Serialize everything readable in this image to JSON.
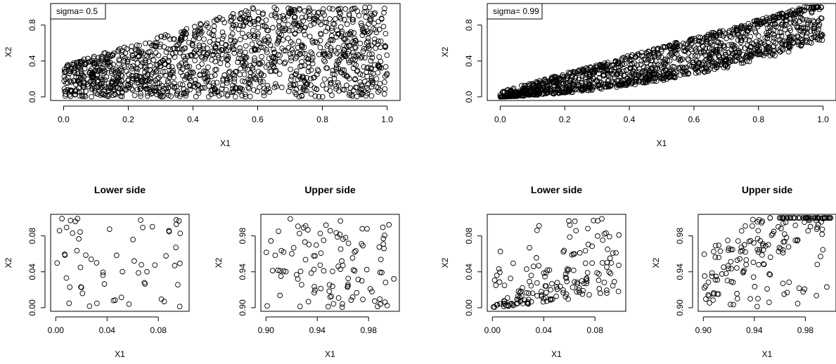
{
  "chart_data": [
    {
      "type": "scatter",
      "legend_text": "sigma= 0.5",
      "legend_position": "top-left",
      "xlabel": "X1",
      "ylabel": "X2",
      "xlim": [
        0,
        1
      ],
      "ylim": [
        0,
        1
      ],
      "xticks": [
        "0.0",
        "0.2",
        "0.4",
        "0.6",
        "0.8",
        "1.0"
      ],
      "yticks": [
        "0.0",
        "0.4",
        "0.8"
      ],
      "n_points": 1400,
      "dependence": 0.5,
      "seed": 11
    },
    {
      "type": "scatter",
      "legend_text": "sigma= 0.99",
      "legend_position": "top-left",
      "xlabel": "X1",
      "ylabel": "X2",
      "xlim": [
        0,
        1
      ],
      "ylim": [
        0,
        1
      ],
      "xticks": [
        "0.0",
        "0.2",
        "0.4",
        "0.6",
        "0.8",
        "1.0"
      ],
      "yticks": [
        "0.0",
        "0.4",
        "0.8"
      ],
      "n_points": 1400,
      "dependence": 0.99,
      "seed": 23
    },
    {
      "type": "scatter",
      "title": "Lower side",
      "xlabel": "X1",
      "ylabel": "X2",
      "xlim": [
        0,
        0.1
      ],
      "ylim": [
        0,
        0.1
      ],
      "xticks": [
        "0.00",
        "0.04",
        "0.08"
      ],
      "yticks": [
        "0.00",
        "0.04",
        "0.08"
      ],
      "n_points": 60,
      "dependence": 0.5,
      "seed": 37
    },
    {
      "type": "scatter",
      "title": "Upper side",
      "xlabel": "X1",
      "ylabel": "X2",
      "xlim": [
        0.9,
        1
      ],
      "ylim": [
        0.9,
        1
      ],
      "xticks": [
        "0.90",
        "0.94",
        "0.98"
      ],
      "yticks": [
        "0.90",
        "0.94",
        "0.98"
      ],
      "n_points": 110,
      "dependence": 0.5,
      "seed": 41
    },
    {
      "type": "scatter",
      "title": "Lower side",
      "xlabel": "X1",
      "ylabel": "X2",
      "xlim": [
        0,
        0.1
      ],
      "ylim": [
        0,
        0.1
      ],
      "xticks": [
        "0.00",
        "0.04",
        "0.08"
      ],
      "yticks": [
        "0.00",
        "0.04",
        "0.08"
      ],
      "n_points": 170,
      "dependence": 0.99,
      "seed": 53
    },
    {
      "type": "scatter",
      "title": "Upper side",
      "xlabel": "X1",
      "ylabel": "X2",
      "xlim": [
        0.9,
        1
      ],
      "ylim": [
        0.9,
        1
      ],
      "xticks": [
        "0.90",
        "0.94",
        "0.98"
      ],
      "yticks": [
        "0.90",
        "0.94",
        "0.98"
      ],
      "n_points": 190,
      "dependence": 0.99,
      "seed": 67
    }
  ]
}
